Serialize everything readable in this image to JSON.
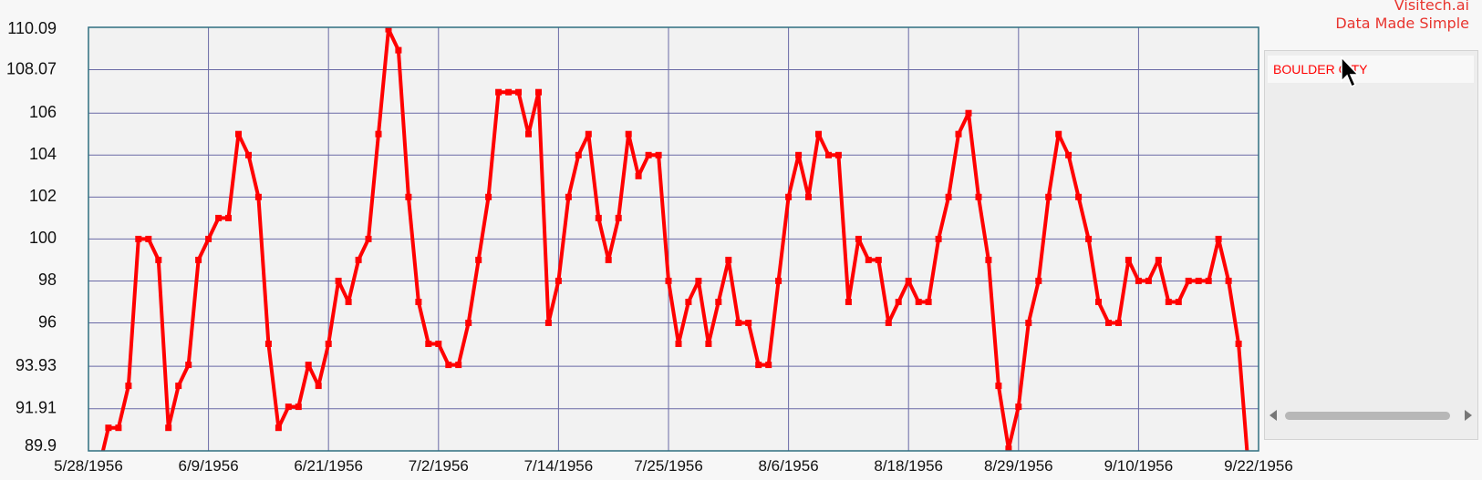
{
  "brand": {
    "line1": "Visitech.ai",
    "line2": "Data Made Simple",
    "color": "#e8342e"
  },
  "legend": {
    "items": [
      {
        "label": "BOULDER CITY",
        "color": "#ff0000"
      }
    ]
  },
  "chart_data": {
    "type": "line",
    "title": "",
    "xlabel": "",
    "ylabel": "",
    "ylim": [
      89.9,
      110.09
    ],
    "yticks": [
      "110.09",
      "108.07",
      "106",
      "104",
      "102",
      "100",
      "98",
      "96",
      "93.93",
      "91.91",
      "89.9"
    ],
    "xlim": [
      "1956-05-28",
      "1956-09-22"
    ],
    "xticks": [
      "5/28/1956",
      "6/9/1956",
      "6/21/1956",
      "7/2/1956",
      "7/14/1956",
      "7/25/1956",
      "8/6/1956",
      "8/18/1956",
      "8/29/1956",
      "9/10/1956",
      "9/22/1956"
    ],
    "grid": true,
    "series": [
      {
        "name": "BOULDER CITY",
        "color": "#ff0000",
        "points": [
          [
            "1956-05-29",
            89
          ],
          [
            "1956-05-30",
            91
          ],
          [
            "1956-05-31",
            91
          ],
          [
            "1956-06-01",
            93
          ],
          [
            "1956-06-02",
            100
          ],
          [
            "1956-06-03",
            100
          ],
          [
            "1956-06-04",
            99
          ],
          [
            "1956-06-05",
            91
          ],
          [
            "1956-06-06",
            93
          ],
          [
            "1956-06-07",
            94
          ],
          [
            "1956-06-08",
            99
          ],
          [
            "1956-06-09",
            100
          ],
          [
            "1956-06-10",
            101
          ],
          [
            "1956-06-11",
            101
          ],
          [
            "1956-06-12",
            105
          ],
          [
            "1956-06-13",
            104
          ],
          [
            "1956-06-14",
            102
          ],
          [
            "1956-06-15",
            95
          ],
          [
            "1956-06-16",
            91
          ],
          [
            "1956-06-17",
            92
          ],
          [
            "1956-06-18",
            92
          ],
          [
            "1956-06-19",
            94
          ],
          [
            "1956-06-20",
            93
          ],
          [
            "1956-06-21",
            95
          ],
          [
            "1956-06-22",
            98
          ],
          [
            "1956-06-23",
            97
          ],
          [
            "1956-06-24",
            99
          ],
          [
            "1956-06-25",
            100
          ],
          [
            "1956-06-26",
            105
          ],
          [
            "1956-06-27",
            110
          ],
          [
            "1956-06-28",
            109
          ],
          [
            "1956-06-29",
            102
          ],
          [
            "1956-06-30",
            97
          ],
          [
            "1956-07-01",
            95
          ],
          [
            "1956-07-02",
            95
          ],
          [
            "1956-07-03",
            94
          ],
          [
            "1956-07-04",
            94
          ],
          [
            "1956-07-05",
            96
          ],
          [
            "1956-07-06",
            99
          ],
          [
            "1956-07-07",
            102
          ],
          [
            "1956-07-08",
            107
          ],
          [
            "1956-07-09",
            107
          ],
          [
            "1956-07-10",
            107
          ],
          [
            "1956-07-11",
            105
          ],
          [
            "1956-07-12",
            107
          ],
          [
            "1956-07-13",
            96
          ],
          [
            "1956-07-14",
            98
          ],
          [
            "1956-07-15",
            102
          ],
          [
            "1956-07-16",
            104
          ],
          [
            "1956-07-17",
            105
          ],
          [
            "1956-07-18",
            101
          ],
          [
            "1956-07-19",
            99
          ],
          [
            "1956-07-20",
            101
          ],
          [
            "1956-07-21",
            105
          ],
          [
            "1956-07-22",
            103
          ],
          [
            "1956-07-23",
            104
          ],
          [
            "1956-07-24",
            104
          ],
          [
            "1956-07-25",
            98
          ],
          [
            "1956-07-26",
            95
          ],
          [
            "1956-07-27",
            97
          ],
          [
            "1956-07-28",
            98
          ],
          [
            "1956-07-29",
            95
          ],
          [
            "1956-07-30",
            97
          ],
          [
            "1956-07-31",
            99
          ],
          [
            "1956-08-01",
            96
          ],
          [
            "1956-08-02",
            96
          ],
          [
            "1956-08-03",
            94
          ],
          [
            "1956-08-04",
            94
          ],
          [
            "1956-08-05",
            98
          ],
          [
            "1956-08-06",
            102
          ],
          [
            "1956-08-07",
            104
          ],
          [
            "1956-08-08",
            102
          ],
          [
            "1956-08-09",
            105
          ],
          [
            "1956-08-10",
            104
          ],
          [
            "1956-08-11",
            104
          ],
          [
            "1956-08-12",
            97
          ],
          [
            "1956-08-13",
            100
          ],
          [
            "1956-08-14",
            99
          ],
          [
            "1956-08-15",
            99
          ],
          [
            "1956-08-16",
            96
          ],
          [
            "1956-08-17",
            97
          ],
          [
            "1956-08-18",
            98
          ],
          [
            "1956-08-19",
            97
          ],
          [
            "1956-08-20",
            97
          ],
          [
            "1956-08-21",
            100
          ],
          [
            "1956-08-22",
            102
          ],
          [
            "1956-08-23",
            105
          ],
          [
            "1956-08-24",
            106
          ],
          [
            "1956-08-25",
            102
          ],
          [
            "1956-08-26",
            99
          ],
          [
            "1956-08-27",
            93
          ],
          [
            "1956-08-28",
            90
          ],
          [
            "1956-08-29",
            92
          ],
          [
            "1956-08-30",
            96
          ],
          [
            "1956-08-31",
            98
          ],
          [
            "1956-09-01",
            102
          ],
          [
            "1956-09-02",
            105
          ],
          [
            "1956-09-03",
            104
          ],
          [
            "1956-09-04",
            102
          ],
          [
            "1956-09-05",
            100
          ],
          [
            "1956-09-06",
            97
          ],
          [
            "1956-09-07",
            96
          ],
          [
            "1956-09-08",
            96
          ],
          [
            "1956-09-09",
            99
          ],
          [
            "1956-09-10",
            98
          ],
          [
            "1956-09-11",
            98
          ],
          [
            "1956-09-12",
            99
          ],
          [
            "1956-09-13",
            97
          ],
          [
            "1956-09-14",
            97
          ],
          [
            "1956-09-15",
            98
          ],
          [
            "1956-09-16",
            98
          ],
          [
            "1956-09-17",
            98
          ],
          [
            "1956-09-18",
            100
          ],
          [
            "1956-09-19",
            98
          ],
          [
            "1956-09-20",
            95
          ],
          [
            "1956-09-21",
            89
          ]
        ]
      }
    ]
  }
}
